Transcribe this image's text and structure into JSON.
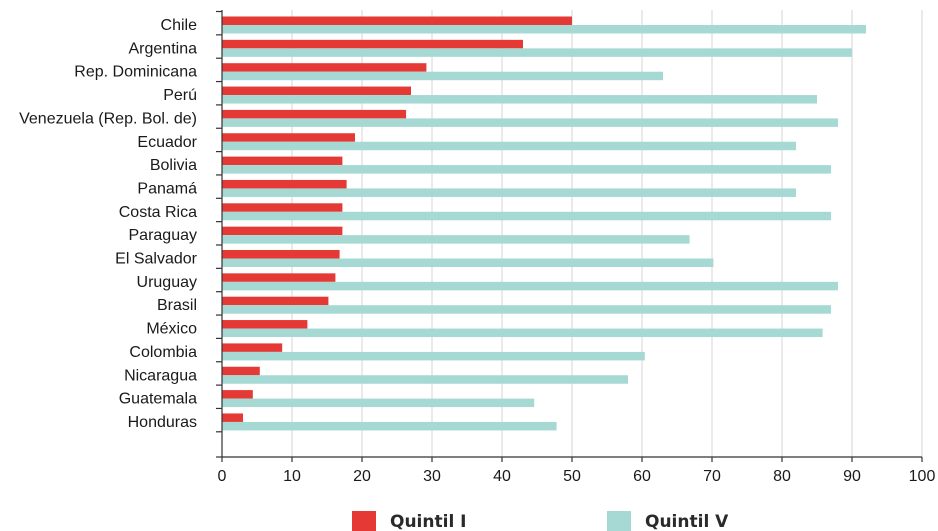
{
  "chart_data": {
    "type": "bar",
    "orientation": "horizontal",
    "categories": [
      "Chile",
      "Argentina",
      "Rep. Dominicana",
      "Perú",
      "Venezuela (Rep. Bol. de)",
      "Ecuador",
      "Bolivia",
      "Panamá",
      "Costa Rica",
      "Paraguay",
      "El Salvador",
      "Uruguay",
      "Brasil",
      "México",
      "Colombia",
      "Nicaragua",
      "Guatemala",
      "Honduras"
    ],
    "series": [
      {
        "name": "Quintil I",
        "color": "#e53935",
        "values": [
          50,
          43,
          29.2,
          27,
          26.3,
          19,
          17.2,
          17.8,
          17.2,
          17.2,
          16.8,
          16.2,
          15.2,
          12.2,
          8.6,
          5.4,
          4.4,
          3
        ]
      },
      {
        "name": "Quintil V",
        "color": "#a6d9d4",
        "values": [
          92,
          90,
          63,
          85,
          88,
          82,
          87,
          82,
          87,
          66.8,
          70.2,
          88,
          87,
          85.8,
          60.4,
          58,
          44.6,
          47.8
        ]
      }
    ],
    "xlim": [
      0,
      100
    ],
    "xticks": [
      0,
      10,
      20,
      30,
      40,
      50,
      60,
      70,
      80,
      90,
      100
    ],
    "grid": true,
    "legend_position": "bottom"
  }
}
